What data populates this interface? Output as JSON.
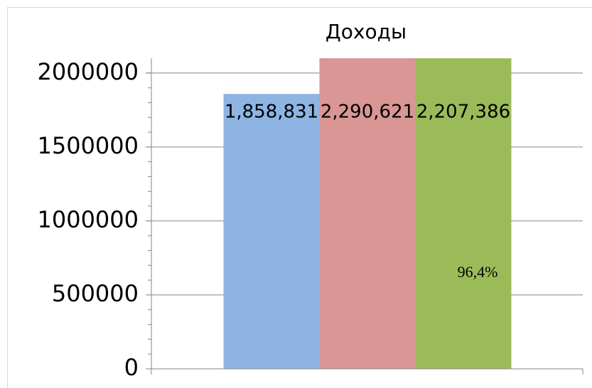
{
  "chart_data": {
    "type": "bar",
    "title": "Доходы",
    "categories": [
      null
    ],
    "series": [
      {
        "color": "#8eb4e3",
        "values": [
          1858831
        ],
        "value_labels": [
          "1,858,831"
        ]
      },
      {
        "color": "#d99694",
        "values": [
          2290621
        ],
        "value_labels": [
          "2,290,621"
        ]
      },
      {
        "color": "#9bbb59",
        "values": [
          2207386
        ],
        "value_labels": [
          "2,207,386"
        ]
      }
    ],
    "annotations": [
      "96,4%"
    ],
    "ylim": [
      0,
      2100000
    ],
    "yticks": [
      0,
      500000,
      1000000,
      1500000,
      2000000
    ],
    "grid": true
  }
}
